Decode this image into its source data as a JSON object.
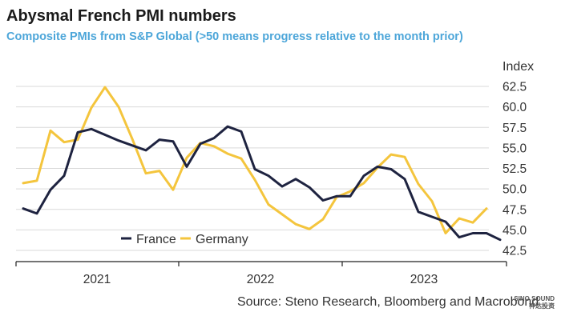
{
  "chart_data": {
    "type": "line",
    "title": "Abysmal French PMI numbers",
    "subtitle": "Composite PMIs from S&P Global (>50 means progress relative to the month prior)",
    "ylabel": "Index",
    "ylim": [
      41.5,
      63.5
    ],
    "yticks": [
      "62.5",
      "60.0",
      "57.5",
      "55.0",
      "52.5",
      "50.0",
      "47.5",
      "45.0",
      "42.5"
    ],
    "x_period_labels": [
      "2021",
      "2022",
      "2023"
    ],
    "x_start": "Aug 2020",
    "grid": true,
    "legend_position": "bottom-left",
    "series": [
      {
        "name": "France",
        "color": "#1e2340",
        "values": [
          47.6,
          47.0,
          49.9,
          51.6,
          56.9,
          57.3,
          56.6,
          55.9,
          55.3,
          54.7,
          56.0,
          55.8,
          52.7,
          55.5,
          56.2,
          57.6,
          57.0,
          52.4,
          51.6,
          50.3,
          51.2,
          50.2,
          48.6,
          49.1,
          49.1,
          51.6,
          52.7,
          52.4,
          51.2,
          47.2,
          46.6,
          46.0,
          44.1,
          44.6,
          44.6,
          43.8
        ]
      },
      {
        "name": "Germany",
        "color": "#f4c53d",
        "values": [
          50.7,
          51.0,
          57.1,
          55.7,
          56.0,
          59.9,
          62.4,
          60.0,
          56.1,
          51.9,
          52.2,
          49.9,
          53.8,
          55.6,
          55.2,
          54.3,
          53.7,
          51.1,
          48.1,
          46.9,
          45.7,
          45.1,
          46.3,
          49.0,
          49.7,
          50.7,
          52.6,
          54.2,
          53.9,
          50.6,
          48.5,
          44.6,
          46.4,
          45.9,
          47.6
        ]
      }
    ],
    "source": "Source: Steno Research, Bloomberg and Macrobond"
  },
  "watermark": {
    "line1": "SINO SOUND",
    "line2": "神达投资"
  }
}
